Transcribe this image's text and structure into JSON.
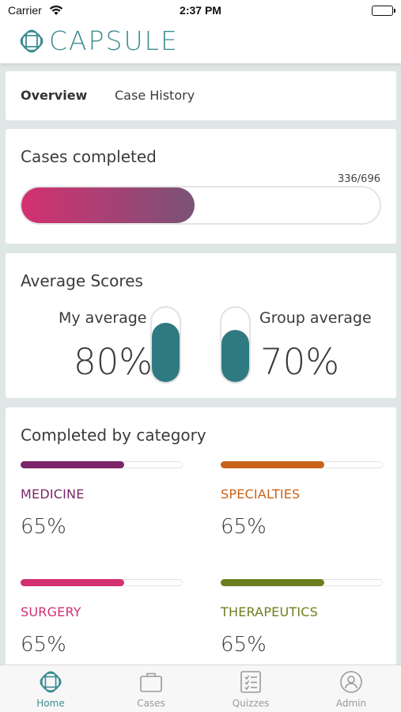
{
  "status_bar": {
    "carrier": "Carrier",
    "time": "2:37 PM"
  },
  "header": {
    "logo_text": "CAPSULE"
  },
  "tabs": [
    {
      "label": "Overview",
      "active": true
    },
    {
      "label": "Case History",
      "active": false
    }
  ],
  "cases_completed": {
    "title": "Cases completed",
    "ratio_text": "336/696",
    "completed": 336,
    "total": 696
  },
  "average_scores": {
    "title": "Average Scores",
    "my": {
      "label": "My average",
      "value_text": "80%",
      "value": 80
    },
    "group": {
      "label": "Group average",
      "value_text": "70%",
      "value": 70
    }
  },
  "categories": {
    "title": "Completed by category",
    "items": [
      {
        "name": "MEDICINE",
        "value_text": "65%",
        "value": 65,
        "color": "#7a2668"
      },
      {
        "name": "SPECIALTIES",
        "value_text": "65%",
        "value": 65,
        "color": "#c8621a"
      },
      {
        "name": "SURGERY",
        "value_text": "65%",
        "value": 65,
        "color": "#d42f71"
      },
      {
        "name": "THERAPEUTICS",
        "value_text": "65%",
        "value": 65,
        "color": "#6b7f1e"
      }
    ]
  },
  "tabbar": {
    "items": [
      {
        "label": "Home",
        "icon": "globe-icon",
        "active": true
      },
      {
        "label": "Cases",
        "icon": "briefcase-icon",
        "active": false
      },
      {
        "label": "Quizzes",
        "icon": "checklist-icon",
        "active": false
      },
      {
        "label": "Admin",
        "icon": "user-badge-icon",
        "active": false
      }
    ]
  },
  "colors": {
    "brand": "#3e8c92",
    "score_fill": "#2f7a80",
    "progress_start": "#d42f71",
    "progress_end": "#7a5376"
  }
}
